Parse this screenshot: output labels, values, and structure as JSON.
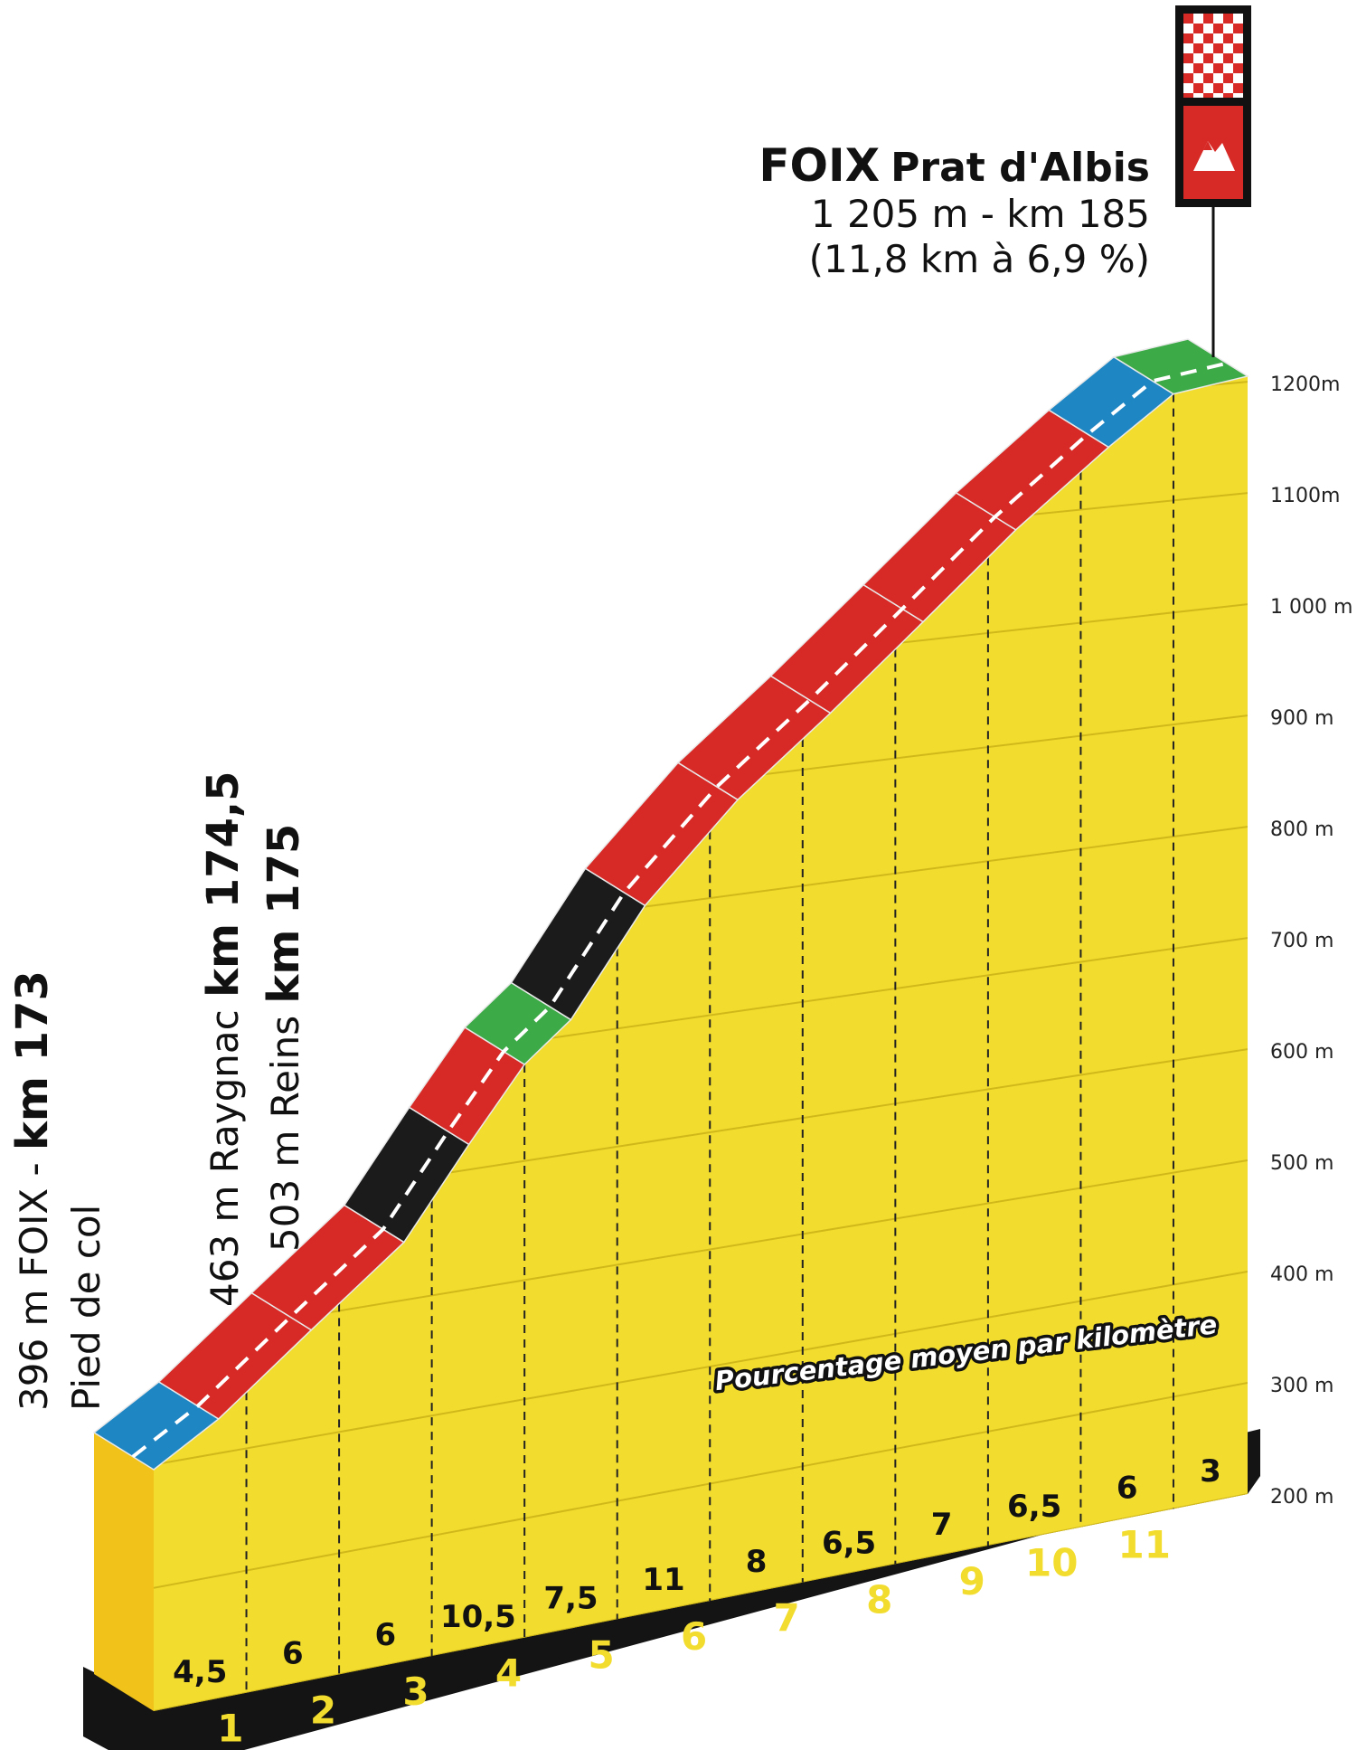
{
  "summit": {
    "name_main": "FOIX",
    "name_sub": "Prat d'Albis",
    "line2": "1 205 m - km 185",
    "line3": "(11,8 km à 6,9 %)"
  },
  "side_labels": {
    "foix_a": "396 m FOIX - ",
    "foix_b": "km 173",
    "foix_c": "Pied de col",
    "raygnac_a": "463 m Raygnac ",
    "raygnac_b": "km 174,5",
    "reins_a": "503 m Reins ",
    "reins_b": "km 175"
  },
  "legend_caption": "Pourcentage moyen par kilomètre",
  "colors": {
    "yellow": "#f2dd2e",
    "yellow_front": "#f0c21a",
    "blue": "#1f86c4",
    "green": "#3daa48",
    "red": "#d72a27",
    "black": "#1b1b1b",
    "base": "#141414",
    "km_text": "#f2dd2e"
  },
  "icons": [
    "checkered-flag-icon",
    "mountain-summit-icon"
  ],
  "chart_data": {
    "type": "area",
    "title": "",
    "ylabel": "",
    "xlabel": "",
    "ylim": [
      200,
      1250
    ],
    "y_ticks": [
      200,
      300,
      400,
      500,
      600,
      700,
      800,
      900,
      1000,
      1100,
      1200
    ],
    "y_tick_labels": [
      "200 m",
      "300 m",
      "400 m",
      "500 m",
      "600 m",
      "700 m",
      "800 m",
      "900 m",
      "1 000 m",
      "1100m",
      "1200m"
    ],
    "profile_km": [
      0,
      0.7,
      1.7,
      2.7,
      3.4,
      4.0,
      4.5,
      5.3,
      6.3,
      7.3,
      8.3,
      9.3,
      10.3,
      11.0,
      11.8
    ],
    "profile_alt": [
      396,
      428,
      488,
      548,
      621,
      681,
      713,
      801,
      881,
      946,
      1016,
      1088,
      1153,
      1195,
      1205
    ],
    "segment_colors": [
      "blue",
      "red",
      "red",
      "black",
      "red",
      "green",
      "black",
      "red",
      "red",
      "red",
      "red",
      "red",
      "blue",
      "green"
    ],
    "km_markers": [
      "1",
      "2",
      "3",
      "4",
      "5",
      "6",
      "7",
      "8",
      "9",
      "10",
      "11"
    ],
    "gradients": [
      "4,5",
      "6",
      "6",
      "10,5",
      "7,5",
      "11",
      "8",
      "6,5",
      "7",
      "6,5",
      "6",
      "3"
    ]
  }
}
